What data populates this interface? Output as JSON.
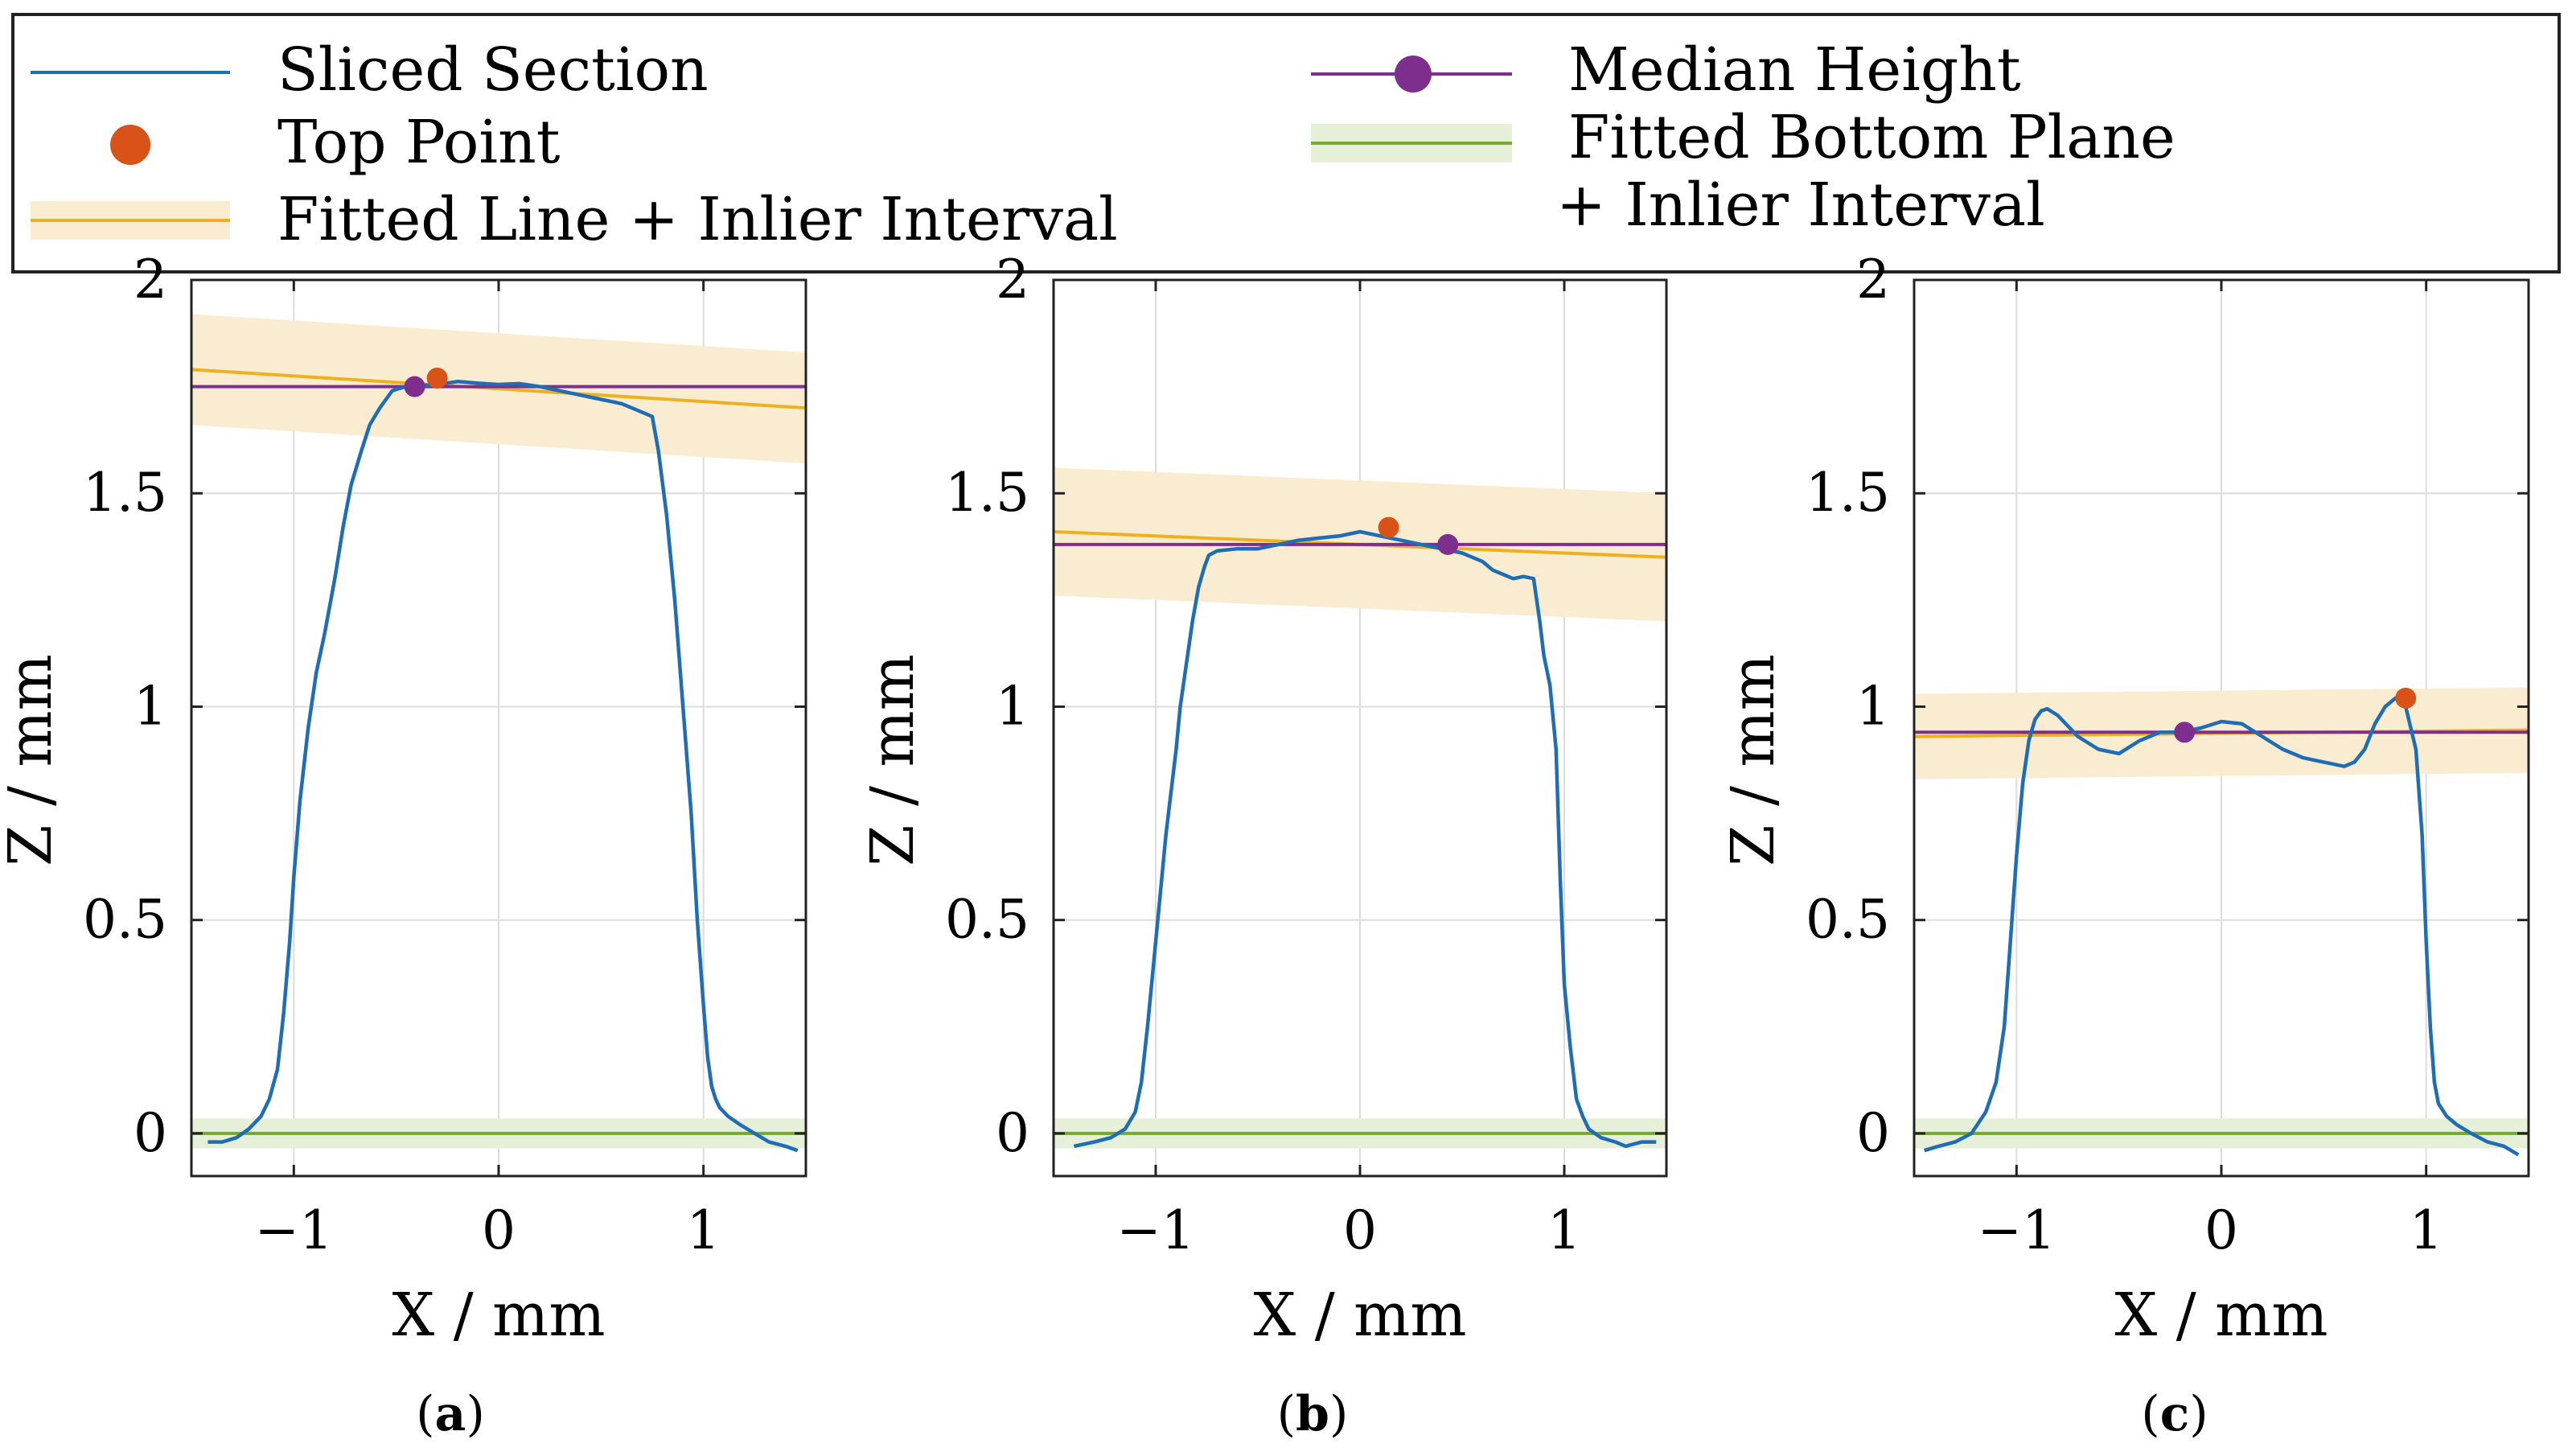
{
  "legend": {
    "entries": [
      {
        "key": "sliced",
        "label": "Sliced Section"
      },
      {
        "key": "top",
        "label": "Top Point"
      },
      {
        "key": "fitted",
        "label": "Fitted Line + Inlier Interval"
      },
      {
        "key": "median",
        "label": "Median Height"
      },
      {
        "key": "bottom",
        "label": "Fitted Bottom Plane",
        "label2": "+ Inlier Interval"
      }
    ]
  },
  "colors": {
    "sliced": "#1f6db5",
    "top": "#d95319",
    "fitted": "#edb120",
    "fitted_band": "#faecd0",
    "median": "#7e2f8e",
    "bottom": "#77ac30",
    "bottom_band": "#e6efd8",
    "grid": "#dcdcdc"
  },
  "chart_data": [
    {
      "type": "line",
      "caption_prefix": "(",
      "caption_letter": "a",
      "caption_suffix": ")",
      "xlabel": "X / mm",
      "ylabel": "Z / mm",
      "xlim": [
        -1.5,
        1.5
      ],
      "ylim": [
        -0.1,
        2
      ],
      "xticks": [
        -1,
        0,
        1
      ],
      "xtick_labels": [
        "−1",
        "0",
        "1"
      ],
      "yticks": [
        0,
        0.5,
        1,
        1.5,
        2
      ],
      "ytick_labels": [
        "0",
        "0.5",
        "1",
        "1.5",
        "2"
      ],
      "grid": true,
      "sliced_section": {
        "x": [
          -1.42,
          -1.35,
          -1.28,
          -1.22,
          -1.16,
          -1.12,
          -1.08,
          -1.05,
          -1.02,
          -1.0,
          -0.97,
          -0.93,
          -0.89,
          -0.85,
          -0.8,
          -0.76,
          -0.72,
          -0.67,
          -0.63,
          -0.58,
          -0.55,
          -0.52,
          -0.49,
          -0.45,
          -0.4,
          -0.3,
          -0.2,
          -0.1,
          0.0,
          0.1,
          0.2,
          0.3,
          0.4,
          0.5,
          0.6,
          0.65,
          0.7,
          0.75,
          0.78,
          0.82,
          0.86,
          0.9,
          0.94,
          0.97,
          1.0,
          1.02,
          1.04,
          1.06,
          1.08,
          1.12,
          1.18,
          1.25,
          1.32,
          1.4,
          1.46
        ],
        "y": [
          -0.02,
          -0.02,
          -0.01,
          0.01,
          0.04,
          0.08,
          0.15,
          0.28,
          0.45,
          0.6,
          0.78,
          0.95,
          1.08,
          1.17,
          1.3,
          1.42,
          1.52,
          1.6,
          1.66,
          1.7,
          1.72,
          1.74,
          1.745,
          1.75,
          1.752,
          1.755,
          1.762,
          1.758,
          1.755,
          1.757,
          1.75,
          1.74,
          1.73,
          1.72,
          1.71,
          1.7,
          1.69,
          1.68,
          1.6,
          1.45,
          1.25,
          1.0,
          0.75,
          0.5,
          0.3,
          0.18,
          0.11,
          0.08,
          0.06,
          0.04,
          0.02,
          0.0,
          -0.02,
          -0.03,
          -0.04
        ]
      },
      "top_point": {
        "x": -0.3,
        "y": 1.77
      },
      "median_height": {
        "y": 1.75,
        "marker_x": -0.41
      },
      "fitted_line": {
        "y_at_xmin": 1.79,
        "y_at_xmax": 1.7,
        "band": 0.13
      },
      "bottom_plane": {
        "y": 0.0,
        "band": 0.035
      }
    },
    {
      "type": "line",
      "caption_prefix": "(",
      "caption_letter": "b",
      "caption_suffix": ")",
      "xlabel": "X / mm",
      "ylabel": "Z / mm",
      "xlim": [
        -1.5,
        1.5
      ],
      "ylim": [
        -0.1,
        2
      ],
      "xticks": [
        -1,
        0,
        1
      ],
      "xtick_labels": [
        "−1",
        "0",
        "1"
      ],
      "yticks": [
        0,
        0.5,
        1,
        1.5,
        2
      ],
      "ytick_labels": [
        "0",
        "0.5",
        "1",
        "1.5",
        "2"
      ],
      "grid": true,
      "sliced_section": {
        "x": [
          -1.4,
          -1.3,
          -1.22,
          -1.15,
          -1.1,
          -1.07,
          -1.04,
          -1.01,
          -0.98,
          -0.95,
          -0.92,
          -0.9,
          -0.88,
          -0.85,
          -0.82,
          -0.79,
          -0.76,
          -0.74,
          -0.7,
          -0.6,
          -0.5,
          -0.4,
          -0.3,
          -0.2,
          -0.1,
          0.0,
          0.1,
          0.2,
          0.3,
          0.4,
          0.5,
          0.55,
          0.6,
          0.65,
          0.7,
          0.75,
          0.8,
          0.85,
          0.88,
          0.9,
          0.93,
          0.96,
          0.98,
          1.0,
          1.03,
          1.06,
          1.09,
          1.12,
          1.18,
          1.25,
          1.3,
          1.38,
          1.45
        ],
        "y": [
          -0.03,
          -0.02,
          -0.01,
          0.01,
          0.05,
          0.12,
          0.25,
          0.4,
          0.55,
          0.7,
          0.82,
          0.9,
          1.0,
          1.1,
          1.2,
          1.28,
          1.33,
          1.355,
          1.365,
          1.37,
          1.37,
          1.38,
          1.39,
          1.395,
          1.4,
          1.41,
          1.4,
          1.39,
          1.38,
          1.37,
          1.36,
          1.35,
          1.34,
          1.32,
          1.31,
          1.3,
          1.305,
          1.3,
          1.2,
          1.12,
          1.05,
          0.9,
          0.6,
          0.35,
          0.2,
          0.08,
          0.04,
          0.01,
          -0.01,
          -0.02,
          -0.03,
          -0.02,
          -0.02
        ]
      },
      "top_point": {
        "x": 0.14,
        "y": 1.42
      },
      "median_height": {
        "y": 1.38,
        "marker_x": 0.43
      },
      "fitted_line": {
        "y_at_xmin": 1.41,
        "y_at_xmax": 1.35,
        "band": 0.15
      },
      "bottom_plane": {
        "y": 0.0,
        "band": 0.035
      }
    },
    {
      "type": "line",
      "caption_prefix": "(",
      "caption_letter": "c",
      "caption_suffix": ")",
      "xlabel": "X / mm",
      "ylabel": "Z / mm",
      "xlim": [
        -1.5,
        1.5
      ],
      "ylim": [
        -0.1,
        2
      ],
      "xticks": [
        -1,
        0,
        1
      ],
      "xtick_labels": [
        "−1",
        "0",
        "1"
      ],
      "yticks": [
        0,
        0.5,
        1,
        1.5,
        2
      ],
      "ytick_labels": [
        "0",
        "0.5",
        "1",
        "1.5",
        "2"
      ],
      "grid": true,
      "sliced_section": {
        "x": [
          -1.45,
          -1.38,
          -1.3,
          -1.22,
          -1.15,
          -1.1,
          -1.06,
          -1.03,
          -1.0,
          -0.97,
          -0.94,
          -0.91,
          -0.88,
          -0.85,
          -0.8,
          -0.7,
          -0.6,
          -0.5,
          -0.4,
          -0.3,
          -0.2,
          -0.1,
          0.0,
          0.1,
          0.2,
          0.3,
          0.4,
          0.5,
          0.6,
          0.65,
          0.7,
          0.75,
          0.8,
          0.85,
          0.9,
          0.95,
          0.98,
          1.0,
          1.02,
          1.04,
          1.06,
          1.1,
          1.15,
          1.22,
          1.3,
          1.38,
          1.45
        ],
        "y": [
          -0.04,
          -0.03,
          -0.02,
          0.0,
          0.05,
          0.12,
          0.25,
          0.45,
          0.65,
          0.82,
          0.92,
          0.97,
          0.99,
          0.995,
          0.98,
          0.93,
          0.9,
          0.89,
          0.92,
          0.94,
          0.94,
          0.95,
          0.965,
          0.96,
          0.93,
          0.9,
          0.88,
          0.87,
          0.86,
          0.87,
          0.9,
          0.96,
          1.0,
          1.02,
          1.0,
          0.9,
          0.7,
          0.45,
          0.25,
          0.12,
          0.07,
          0.04,
          0.02,
          0.0,
          -0.02,
          -0.03,
          -0.05
        ]
      },
      "top_point": {
        "x": 0.9,
        "y": 1.02
      },
      "median_height": {
        "y": 0.94,
        "marker_x": -0.18
      },
      "fitted_line": {
        "y_at_xmin": 0.93,
        "y_at_xmax": 0.945,
        "band": 0.1
      },
      "bottom_plane": {
        "y": 0.0,
        "band": 0.035
      }
    }
  ]
}
